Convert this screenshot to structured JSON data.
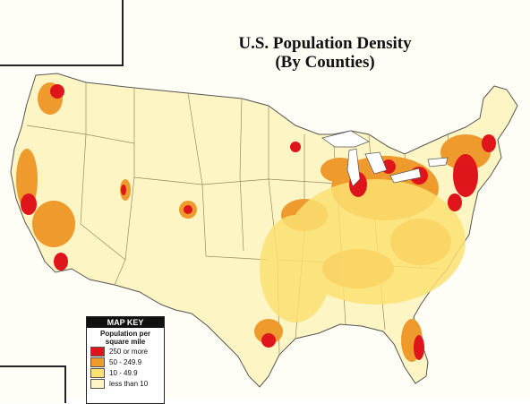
{
  "title": {
    "line1": "U.S. Population Density",
    "line2": "(By Counties)"
  },
  "legend": {
    "heading": "MAP KEY",
    "subtitle_line1": "Population per",
    "subtitle_line2": "square mile",
    "items": [
      {
        "label": "250 or more",
        "color": "#e0141b"
      },
      {
        "label": "50 - 249.9",
        "color": "#ef9a2c"
      },
      {
        "label": "10 - 49.9",
        "color": "#fbe072"
      },
      {
        "label": "less than 10",
        "color": "#fdf5c4"
      }
    ]
  },
  "colors": {
    "background": "#fffef6",
    "border": "#222222",
    "state_lines": "#9a8a5a"
  }
}
